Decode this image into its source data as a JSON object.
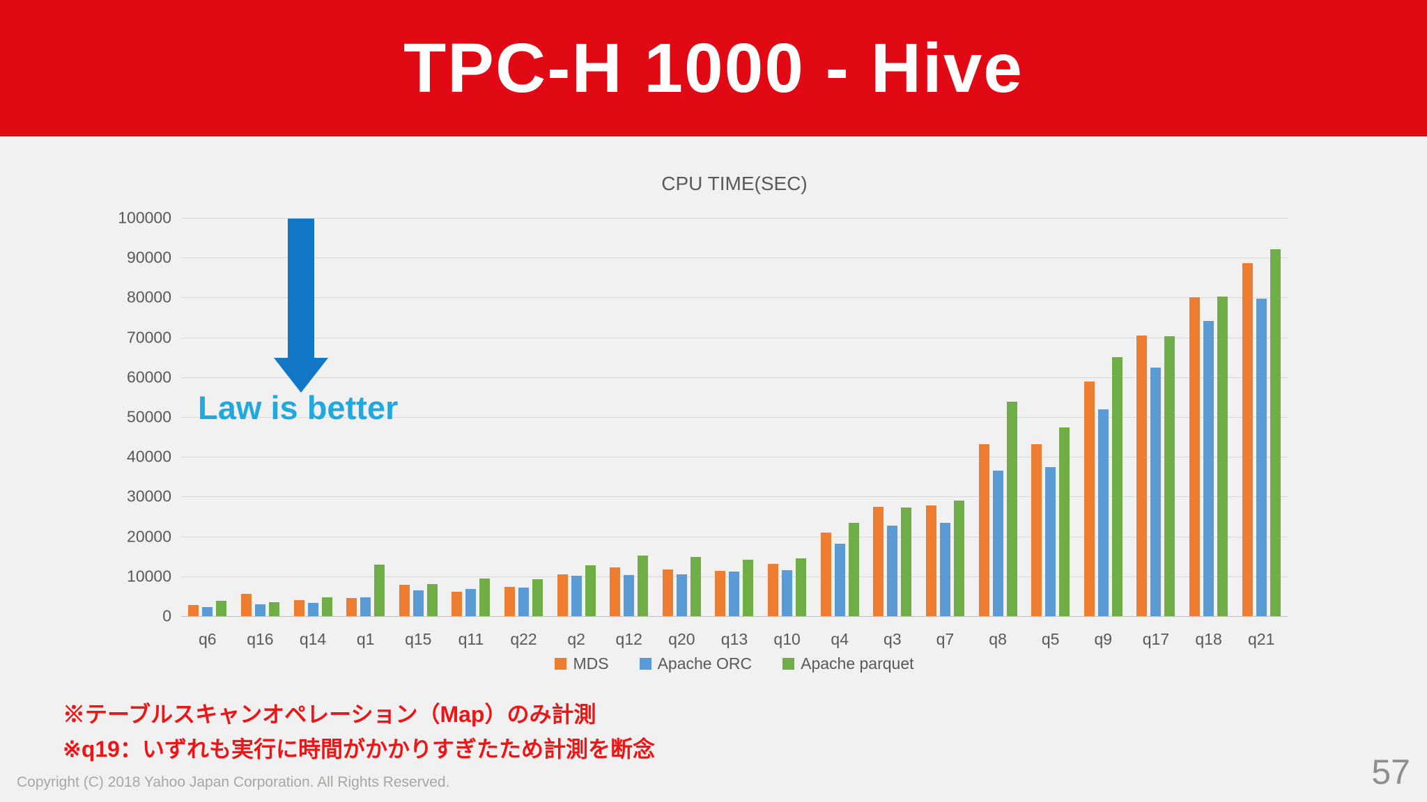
{
  "slide": {
    "title": "TPC-H 1000 - Hive",
    "page_number": "57",
    "copyright": "Copyright (C) 2018 Yahoo Japan Corporation. All Rights Reserved.",
    "notes": [
      "※テーブルスキャンオペレーション（Map）のみ計測",
      "※q19：いずれも実行に時間がかかりすぎたため計測を断念"
    ],
    "annotation": {
      "label": "Law is better"
    }
  },
  "colors": {
    "banner_red": "#e00914",
    "note_red": "#ed1515",
    "series_mds": "#ed7d31",
    "series_orc": "#5b9bd5",
    "series_parquet": "#6fad47",
    "annotation_blue": "#1377c8",
    "annotation_cyan": "#1fa9e0",
    "axis_text": "#595959",
    "gridline": "#d9d9d9",
    "background": "#f2f1f1",
    "muted_text": "#a8a6a6"
  },
  "chart_data": {
    "type": "bar",
    "title": "CPU TIME(SEC)",
    "categories": [
      "q6",
      "q16",
      "q14",
      "q1",
      "q15",
      "q11",
      "q22",
      "q2",
      "q12",
      "q20",
      "q13",
      "q10",
      "q4",
      "q3",
      "q7",
      "q8",
      "q5",
      "q9",
      "q17",
      "q18",
      "q21"
    ],
    "series": [
      {
        "name": "MDS",
        "color_key": "series_mds",
        "values": [
          2800,
          5600,
          4100,
          4500,
          7900,
          6200,
          7400,
          10500,
          12200,
          11800,
          11400,
          13200,
          21000,
          27400,
          27800,
          43200,
          43100,
          58900,
          70500,
          80000,
          88700
        ]
      },
      {
        "name": "Apache ORC",
        "color_key": "series_orc",
        "values": [
          2300,
          2900,
          3400,
          4800,
          6500,
          6900,
          7100,
          10100,
          10300,
          10500,
          11200,
          11500,
          18100,
          22800,
          23400,
          36600,
          37500,
          51900,
          62500,
          74100,
          79800
        ]
      },
      {
        "name": "Apache parquet",
        "color_key": "series_parquet",
        "values": [
          3900,
          3500,
          4800,
          13000,
          8100,
          9400,
          9300,
          12700,
          15200,
          14800,
          14100,
          14500,
          23400,
          27300,
          29100,
          53900,
          47300,
          65100,
          70200,
          80300,
          92200
        ]
      }
    ],
    "xlabel": "",
    "ylabel": "",
    "ylim": [
      0,
      100000
    ],
    "yticks": [
      0,
      10000,
      20000,
      30000,
      40000,
      50000,
      60000,
      70000,
      80000,
      90000,
      100000
    ],
    "grid": true,
    "legend_position": "bottom"
  }
}
